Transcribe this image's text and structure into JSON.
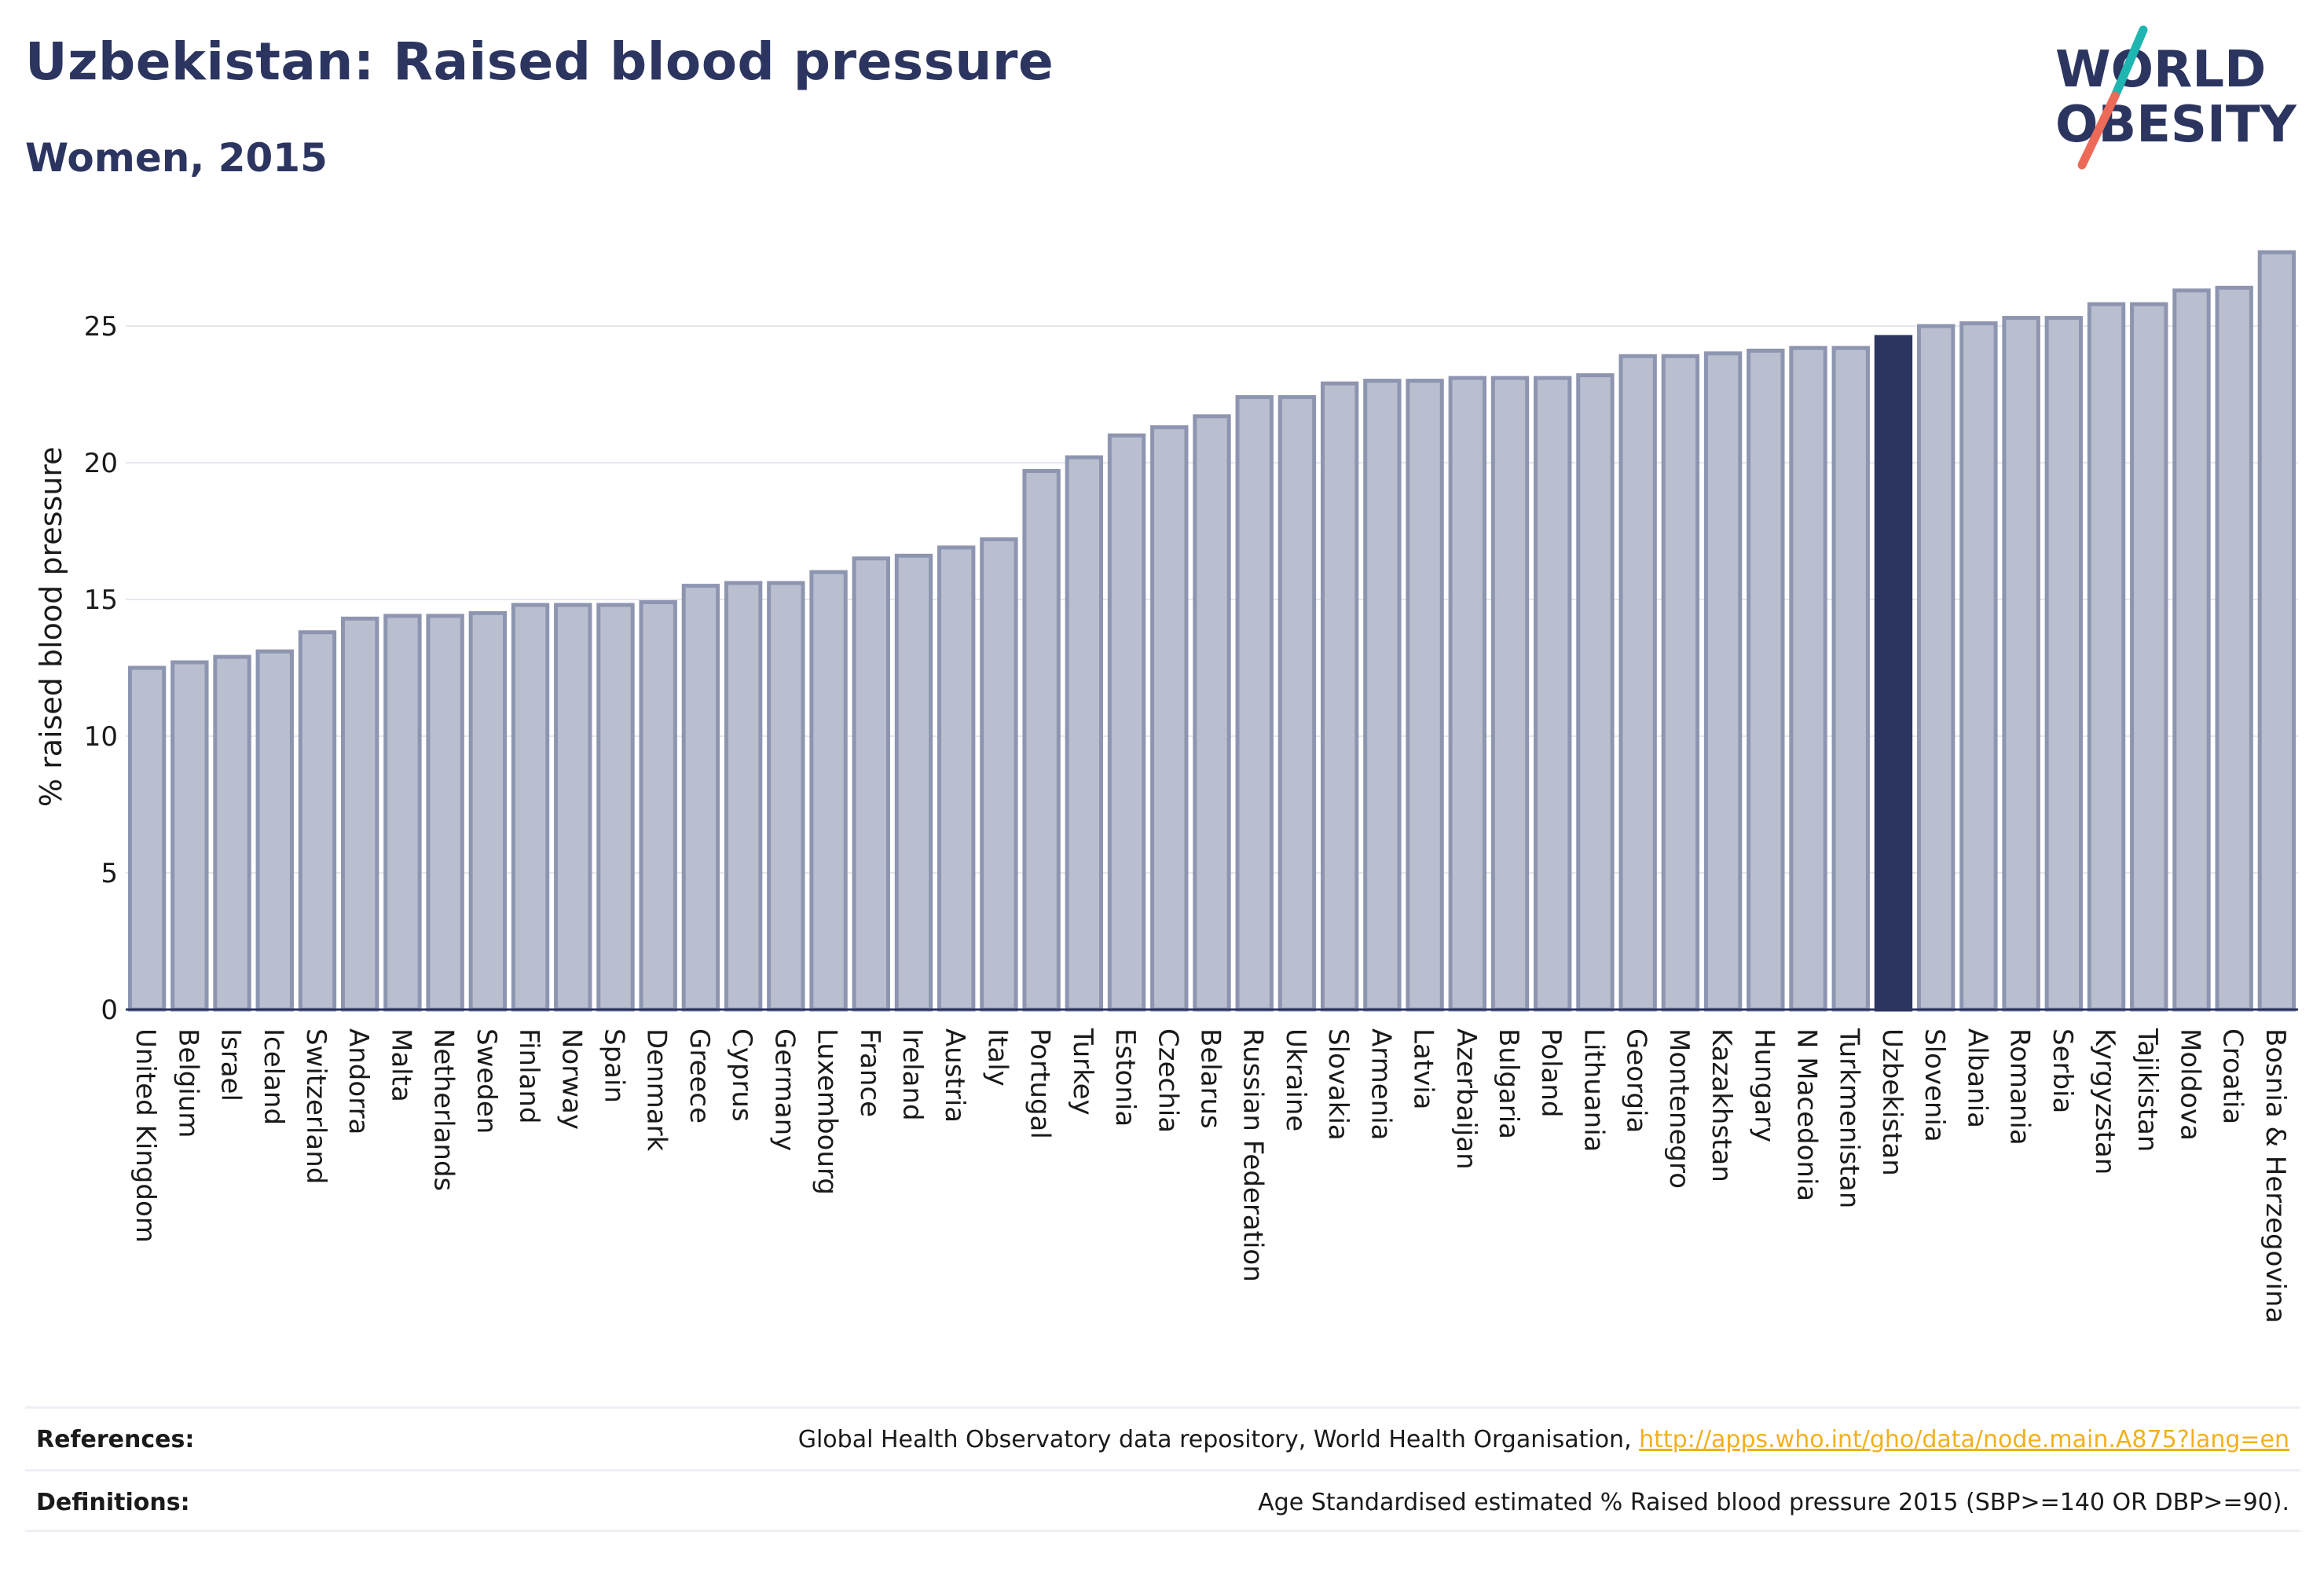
{
  "header": {
    "title": "Uzbekistan: Raised blood pressure",
    "subtitle": "Women, 2015"
  },
  "logo": {
    "line1": "WORLD",
    "line2": "OBESITY",
    "brand_color": "#2b3560",
    "slash_teal": "#1fb5b0",
    "slash_coral": "#ee6a58"
  },
  "colors": {
    "bar_fill": "#b9bfcf",
    "bar_stroke": "#8e95b0",
    "highlight_fill": "#2b3560",
    "gridline": "#e6e8ee",
    "axis_line": "#2b3560"
  },
  "chart_data": {
    "type": "bar",
    "title": "Uzbekistan: Raised blood pressure",
    "subtitle": "Women, 2015",
    "xlabel": "",
    "ylabel": "% raised blood pressure",
    "ylim": [
      0,
      28
    ],
    "yticks": [
      0,
      5,
      10,
      15,
      20,
      25
    ],
    "grid": true,
    "highlight": "Uzbekistan",
    "categories": [
      "United Kingdom",
      "Belgium",
      "Israel",
      "Iceland",
      "Switzerland",
      "Andorra",
      "Malta",
      "Netherlands",
      "Sweden",
      "Finland",
      "Norway",
      "Spain",
      "Denmark",
      "Greece",
      "Cyprus",
      "Germany",
      "Luxembourg",
      "France",
      "Ireland",
      "Austria",
      "Italy",
      "Portugal",
      "Turkey",
      "Estonia",
      "Czechia",
      "Belarus",
      "Russian Federation",
      "Ukraine",
      "Slovakia",
      "Armenia",
      "Latvia",
      "Azerbaijan",
      "Bulgaria",
      "Poland",
      "Lithuania",
      "Georgia",
      "Montenegro",
      "Kazakhstan",
      "Hungary",
      "N Macedonia",
      "Turkmenistan",
      "Uzbekistan",
      "Slovenia",
      "Albania",
      "Romania",
      "Serbia",
      "Kyrgyzstan",
      "Tajikistan",
      "Moldova",
      "Croatia",
      "Bosnia & Herzegovina"
    ],
    "values": [
      12.5,
      12.7,
      12.9,
      13.1,
      13.8,
      14.3,
      14.4,
      14.4,
      14.5,
      14.8,
      14.8,
      14.8,
      14.9,
      15.5,
      15.6,
      15.6,
      16.0,
      16.5,
      16.6,
      16.9,
      17.2,
      19.7,
      20.2,
      21.0,
      21.3,
      21.7,
      22.4,
      22.4,
      22.9,
      23.0,
      23.0,
      23.1,
      23.1,
      23.1,
      23.2,
      23.9,
      23.9,
      24.0,
      24.1,
      24.2,
      24.2,
      24.6,
      25.0,
      25.1,
      25.3,
      25.3,
      25.8,
      25.8,
      26.3,
      26.4,
      27.7
    ]
  },
  "footer": {
    "references_label": "References:",
    "references_text": "Global Health Observatory data repository, World Health Organisation, ",
    "references_link": "http://apps.who.int/gho/data/node.main.A875?lang=en",
    "definitions_label": "Definitions:",
    "definitions_text": "Age Standardised estimated % Raised blood pressure 2015 (SBP>=140 OR DBP>=90)."
  }
}
